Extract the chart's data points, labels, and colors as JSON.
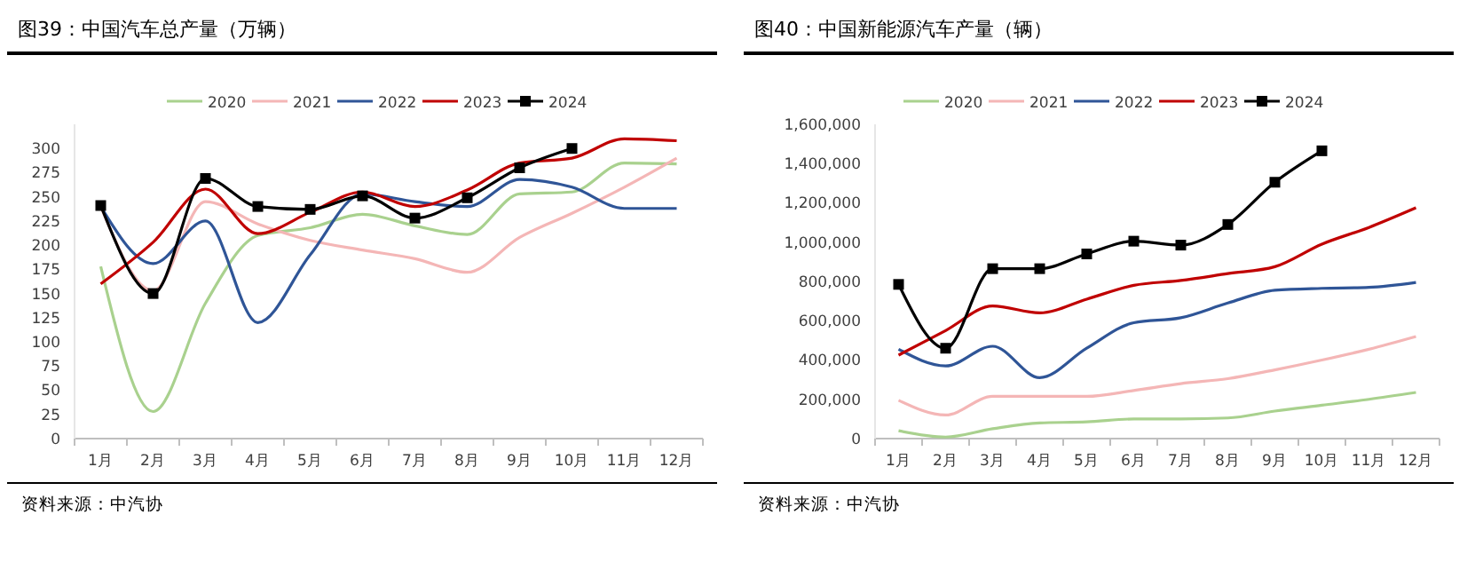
{
  "chart_data": [
    {
      "type": "line",
      "title": "图39：中国汽车总产量（万辆）",
      "categories": [
        "1月",
        "2月",
        "3月",
        "4月",
        "5月",
        "6月",
        "7月",
        "8月",
        "9月",
        "10月",
        "11月",
        "12月"
      ],
      "ylim": [
        0,
        325
      ],
      "yticks": [
        0,
        25,
        50,
        75,
        100,
        125,
        150,
        175,
        200,
        225,
        250,
        275,
        300
      ],
      "grid": false,
      "legend": "top",
      "annotations": [
        "资料来源：中汽协"
      ],
      "series": [
        {
          "name": "2020",
          "color": "#a9d18e",
          "values": [
            178,
            28,
            140,
            210,
            218,
            232,
            220,
            211,
            253,
            255,
            285,
            284
          ]
        },
        {
          "name": "2021",
          "color": "#f4b6b6",
          "values": [
            240,
            153,
            245,
            222,
            205,
            195,
            186,
            172,
            208,
            233,
            260,
            290
          ]
        },
        {
          "name": "2022",
          "color": "#2f5597",
          "values": [
            240,
            181,
            225,
            120,
            190,
            253,
            245,
            240,
            268,
            260,
            238,
            238
          ]
        },
        {
          "name": "2023",
          "color": "#c00000",
          "values": [
            160,
            203,
            258,
            212,
            234,
            255,
            240,
            257,
            285,
            290,
            310,
            308
          ]
        },
        {
          "name": "2024",
          "color": "#000000",
          "marker": "square",
          "values": [
            241,
            150,
            269,
            240,
            237,
            251,
            228,
            249,
            280,
            300,
            null,
            null
          ]
        }
      ]
    },
    {
      "type": "line",
      "title": "图40：中国新能源汽车产量（辆）",
      "categories": [
        "1月",
        "2月",
        "3月",
        "4月",
        "5月",
        "6月",
        "7月",
        "8月",
        "9月",
        "10月",
        "11月",
        "12月"
      ],
      "ylim": [
        0,
        1600000
      ],
      "yticks": [
        0,
        {
          "value": 200000,
          "label": "200,000"
        },
        {
          "value": 400000,
          "label": "400,000"
        },
        {
          "value": 600000,
          "label": "600,000"
        },
        {
          "value": 800000,
          "label": "800,000"
        },
        {
          "value": 1000000,
          "label": "1,000,000"
        },
        {
          "value": 1200000,
          "label": "1,200,000"
        },
        {
          "value": 1400000,
          "label": "1,400,000"
        },
        {
          "value": 1600000,
          "label": "1,600,000"
        }
      ],
      "grid": false,
      "legend": "top",
      "annotations": [
        "资料来源：中汽协"
      ],
      "series": [
        {
          "name": "2020",
          "color": "#a9d18e",
          "values": [
            40000,
            8000,
            50000,
            80000,
            85000,
            100000,
            100000,
            105000,
            140000,
            170000,
            200000,
            235000
          ]
        },
        {
          "name": "2021",
          "color": "#f4b6b6",
          "values": [
            195000,
            120000,
            215000,
            215000,
            215000,
            245000,
            280000,
            305000,
            350000,
            400000,
            455000,
            520000
          ]
        },
        {
          "name": "2022",
          "color": "#2f5597",
          "values": [
            455000,
            370000,
            470000,
            310000,
            460000,
            590000,
            615000,
            690000,
            755000,
            765000,
            770000,
            795000
          ]
        },
        {
          "name": "2023",
          "color": "#c00000",
          "values": [
            425000,
            550000,
            675000,
            640000,
            710000,
            780000,
            805000,
            840000,
            875000,
            990000,
            1075000,
            1175000
          ]
        },
        {
          "name": "2024",
          "color": "#000000",
          "marker": "square",
          "values": [
            785000,
            460000,
            865000,
            865000,
            940000,
            1005000,
            985000,
            1090000,
            1305000,
            1465000,
            null,
            null
          ]
        }
      ]
    }
  ]
}
